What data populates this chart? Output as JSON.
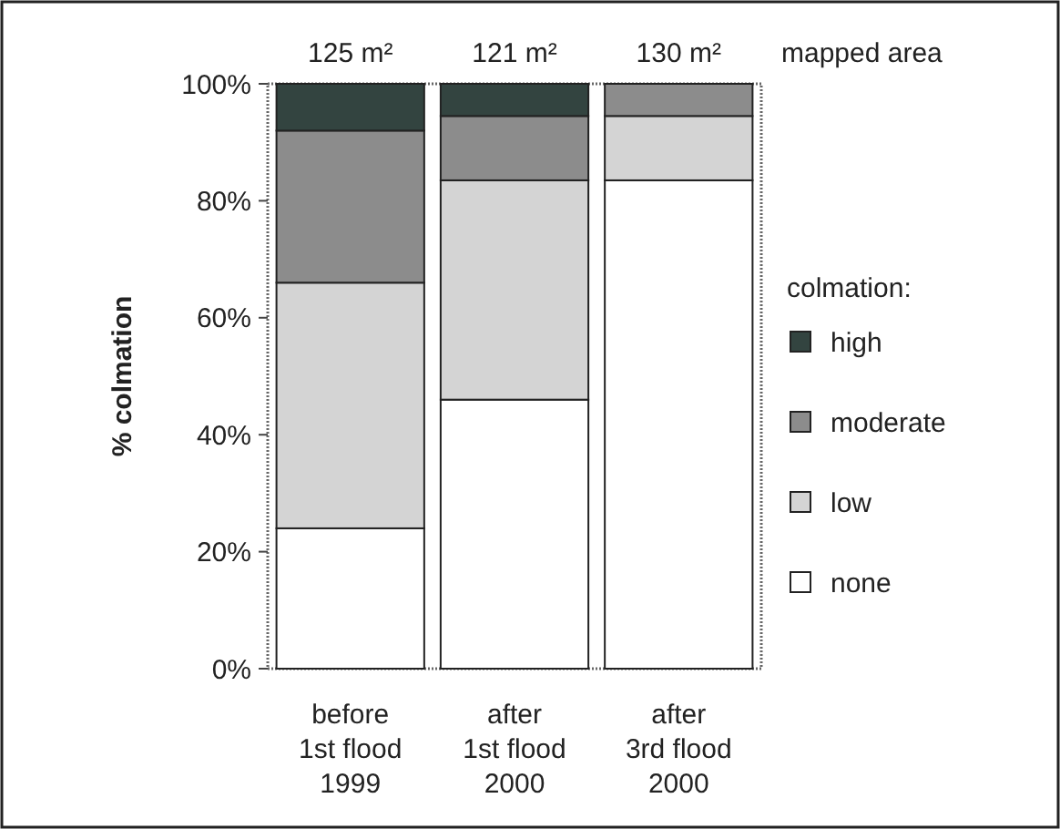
{
  "chart_data": {
    "type": "bar",
    "stacked": true,
    "ylabel": "% colmation",
    "legend_title": "colmation:",
    "legend": "right",
    "categories": [
      "before\n1st flood\n1999",
      "after\n1st flood\n2000",
      "after\n3rd flood\n2000"
    ],
    "series": [
      {
        "name": "none",
        "color": "#ffffff",
        "values": [
          24,
          46,
          83.5
        ]
      },
      {
        "name": "low",
        "color": "#d4d4d4",
        "values": [
          42,
          37.5,
          11
        ]
      },
      {
        "name": "moderate",
        "color": "#8c8c8c",
        "values": [
          26,
          11,
          5.5
        ]
      },
      {
        "name": "high",
        "color": "#334440",
        "values": [
          8,
          5.5,
          0
        ]
      }
    ],
    "ylim": [
      0,
      100
    ],
    "yticks": [
      {
        "value": 0,
        "label": "0%"
      },
      {
        "value": 20,
        "label": "20%"
      },
      {
        "value": 40,
        "label": "40%"
      },
      {
        "value": 60,
        "label": "60%"
      },
      {
        "value": 80,
        "label": "80%"
      },
      {
        "value": 100,
        "label": "100%"
      }
    ],
    "annotations": [
      "125 m²",
      "121 m²",
      "130 m²",
      "mapped area"
    ]
  }
}
